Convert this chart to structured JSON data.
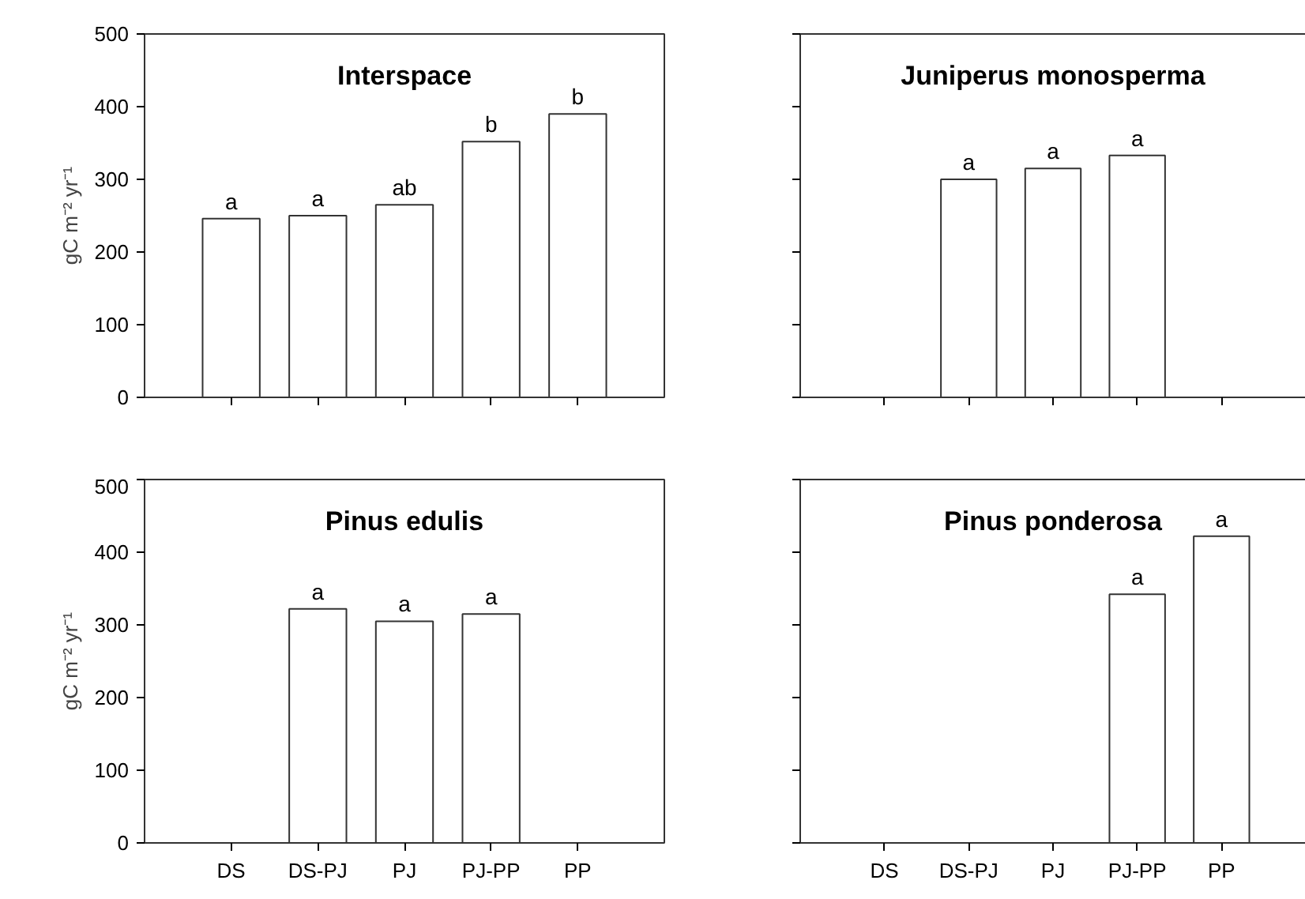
{
  "chart_data": [
    {
      "type": "bar",
      "title": "Interspace",
      "ylabel": "gC m⁻² yr⁻¹",
      "categories": [
        "DS",
        "DS-PJ",
        "PJ",
        "PJ-PP",
        "PP"
      ],
      "values": [
        246,
        250,
        265,
        352,
        390
      ],
      "color": "#ffffff",
      "ylim": [
        0,
        500
      ],
      "yticks": [
        0,
        100,
        200,
        300,
        400,
        500
      ],
      "tick_labels": "y",
      "grid": false,
      "annotations": [
        {
          "text": "a",
          "x": "DS",
          "y": 246
        },
        {
          "text": "a",
          "x": "DS-PJ",
          "y": 250
        },
        {
          "text": "ab",
          "x": "PJ",
          "y": 265
        },
        {
          "text": "b",
          "x": "PJ-PP",
          "y": 352
        },
        {
          "text": "b",
          "x": "PP",
          "y": 390
        }
      ]
    },
    {
      "type": "bar",
      "title": "Juniperus monosperma",
      "categories": [
        "DS",
        "DS-PJ",
        "PJ",
        "PJ-PP",
        "PP"
      ],
      "values": [
        null,
        300,
        315,
        333,
        null
      ],
      "color": "#ffffff",
      "ylim": [
        0,
        500
      ],
      "yticks": [
        {
          "value": 0,
          "label": null
        },
        {
          "value": 100,
          "label": null
        },
        {
          "value": 200,
          "label": null
        },
        {
          "value": 300,
          "label": null
        },
        {
          "value": 400,
          "label": null
        },
        {
          "value": 500,
          "label": null
        }
      ],
      "tick_labels": false,
      "grid": false,
      "annotations": [
        {
          "text": "a",
          "x": "DS-PJ",
          "y": 300
        },
        {
          "text": "a",
          "x": "PJ",
          "y": 315
        },
        {
          "text": "a",
          "x": "PJ-PP",
          "y": 333
        }
      ]
    },
    {
      "type": "bar",
      "title": "Pinus edulis",
      "ylabel": "gC m⁻² yr⁻¹",
      "categories": [
        "DS",
        "DS-PJ",
        "PJ",
        "PJ-PP",
        "PP"
      ],
      "values": [
        null,
        322,
        305,
        315,
        null
      ],
      "color": "#ffffff",
      "ylim": [
        0,
        500
      ],
      "yticks": [
        0,
        100,
        200,
        300,
        400,
        500
      ],
      "grid": false,
      "annotations": [
        {
          "text": "a",
          "x": "DS-PJ",
          "y": 322
        },
        {
          "text": "a",
          "x": "PJ",
          "y": 305
        },
        {
          "text": "a",
          "x": "PJ-PP",
          "y": 315
        }
      ]
    },
    {
      "type": "bar",
      "title": "Pinus ponderosa",
      "categories": [
        "DS",
        "DS-PJ",
        "PJ",
        "PJ-PP",
        "PP"
      ],
      "values": [
        null,
        null,
        null,
        342,
        422
      ],
      "color": "#ffffff",
      "ylim": [
        0,
        500
      ],
      "yticks": [
        {
          "value": 0,
          "label": null
        },
        {
          "value": 100,
          "label": null
        },
        {
          "value": 200,
          "label": null
        },
        {
          "value": 300,
          "label": null
        },
        {
          "value": 400,
          "label": null
        },
        {
          "value": 500,
          "label": null
        }
      ],
      "tick_labels": "x",
      "grid": false,
      "annotations": [
        {
          "text": "a",
          "x": "PJ-PP",
          "y": 342
        },
        {
          "text": "a",
          "x": "PP",
          "y": 422
        }
      ]
    }
  ]
}
